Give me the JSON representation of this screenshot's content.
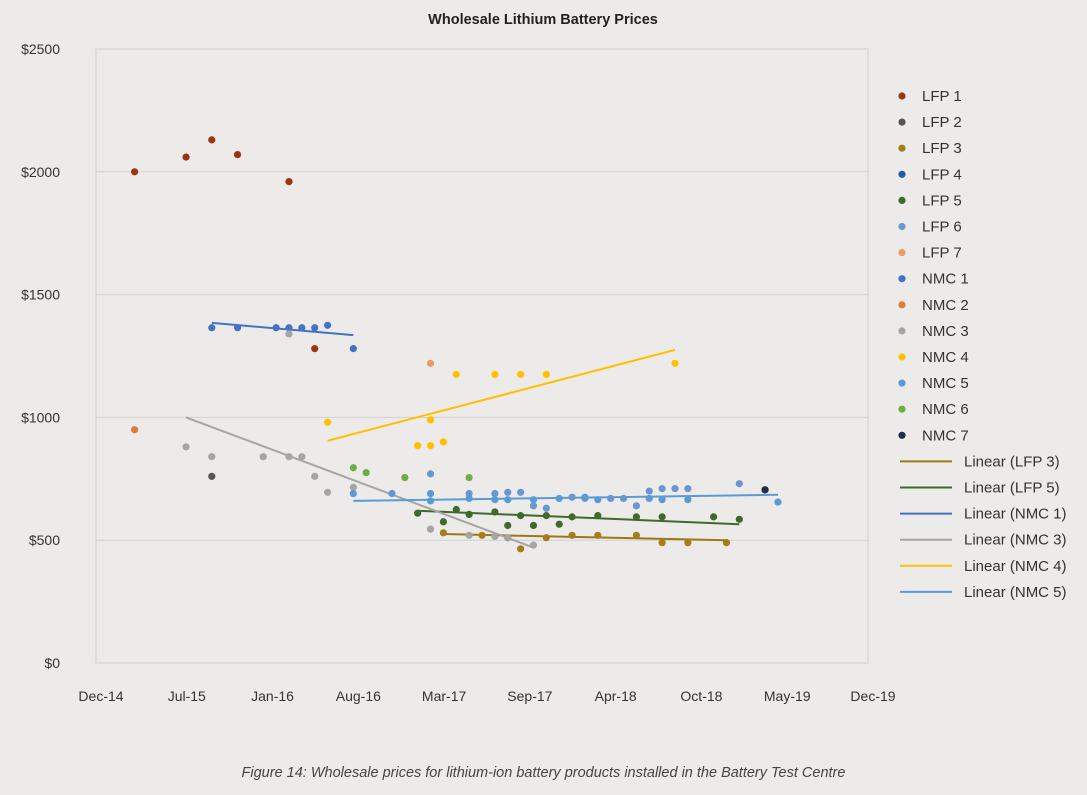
{
  "chart_data": {
    "type": "scatter",
    "title": "Wholesale Lithium Battery Prices",
    "xlabel": "",
    "ylabel": "",
    "x_ticks": [
      "Dec-14",
      "Jul-15",
      "Jan-16",
      "Aug-16",
      "Mar-17",
      "Sep-17",
      "Apr-18",
      "Oct-18",
      "May-19",
      "Dec-19"
    ],
    "y_ticks": [
      "$0",
      "$500",
      "$1000",
      "$1500",
      "$2000",
      "$2500"
    ],
    "xlim": [
      "2014-12",
      "2019-12"
    ],
    "ylim": [
      0,
      2500
    ],
    "grid": "horizontal",
    "legend_position": "right",
    "series": [
      {
        "name": "LFP 1",
        "color": "#9b3411",
        "points": [
          [
            "2015-03",
            2000
          ],
          [
            "2015-07",
            2060
          ],
          [
            "2015-09",
            2130
          ],
          [
            "2015-11",
            2070
          ],
          [
            "2016-03",
            1960
          ],
          [
            "2016-05",
            1280
          ]
        ]
      },
      {
        "name": "LFP 2",
        "color": "#555555",
        "points": [
          [
            "2015-09",
            760
          ]
        ]
      },
      {
        "name": "LFP 3",
        "color": "#a57e1a",
        "points": [
          [
            "2017-03",
            530
          ],
          [
            "2017-06",
            520
          ],
          [
            "2017-08",
            510
          ],
          [
            "2017-09",
            465
          ],
          [
            "2017-11",
            510
          ],
          [
            "2018-01",
            520
          ],
          [
            "2018-03",
            520
          ],
          [
            "2018-06",
            520
          ],
          [
            "2018-08",
            490
          ],
          [
            "2018-10",
            490
          ],
          [
            "2019-01",
            490
          ]
        ]
      },
      {
        "name": "LFP 4",
        "color": "#1f5fa8",
        "points": [
          [
            "2019-04",
            705
          ]
        ]
      },
      {
        "name": "LFP 5",
        "color": "#3f6a2b",
        "points": [
          [
            "2017-01",
            610
          ],
          [
            "2017-03",
            575
          ],
          [
            "2017-04",
            625
          ],
          [
            "2017-05",
            605
          ],
          [
            "2017-07",
            615
          ],
          [
            "2017-08",
            560
          ],
          [
            "2017-09",
            600
          ],
          [
            "2017-10",
            560
          ],
          [
            "2017-11",
            600
          ],
          [
            "2017-12",
            565
          ],
          [
            "2018-01",
            595
          ],
          [
            "2018-03",
            600
          ],
          [
            "2018-06",
            595
          ],
          [
            "2018-08",
            595
          ],
          [
            "2018-12",
            595
          ],
          [
            "2019-02",
            585
          ]
        ]
      },
      {
        "name": "LFP 6",
        "color": "#6b97cf",
        "points": [
          [
            "2017-02",
            770
          ],
          [
            "2017-05",
            690
          ],
          [
            "2017-07",
            690
          ],
          [
            "2017-08",
            695
          ],
          [
            "2017-09",
            695
          ],
          [
            "2017-10",
            640
          ],
          [
            "2017-11",
            630
          ],
          [
            "2018-01",
            675
          ],
          [
            "2018-02",
            670
          ],
          [
            "2018-04",
            670
          ],
          [
            "2018-05",
            670
          ],
          [
            "2018-06",
            640
          ],
          [
            "2018-07",
            700
          ],
          [
            "2018-08",
            710
          ],
          [
            "2018-09",
            710
          ],
          [
            "2018-10",
            710
          ],
          [
            "2019-02",
            730
          ]
        ]
      },
      {
        "name": "LFP 7",
        "color": "#ee9b66",
        "points": [
          [
            "2017-02",
            1220
          ]
        ]
      },
      {
        "name": "NMC 1",
        "color": "#4472c4",
        "points": [
          [
            "2015-09",
            1365
          ],
          [
            "2015-11",
            1365
          ],
          [
            "2016-02",
            1365
          ],
          [
            "2016-03",
            1365
          ],
          [
            "2016-04",
            1365
          ],
          [
            "2016-05",
            1365
          ],
          [
            "2016-06",
            1375
          ],
          [
            "2016-08",
            1280
          ]
        ]
      },
      {
        "name": "NMC 2",
        "color": "#e07b39",
        "points": [
          [
            "2015-03",
            950
          ]
        ]
      },
      {
        "name": "NMC 3",
        "color": "#a5a5a5",
        "points": [
          [
            "2015-07",
            880
          ],
          [
            "2015-09",
            840
          ],
          [
            "2016-01",
            840
          ],
          [
            "2016-03",
            840
          ],
          [
            "2016-03",
            1340
          ],
          [
            "2016-04",
            840
          ],
          [
            "2016-05",
            760
          ],
          [
            "2016-06",
            695
          ],
          [
            "2016-08",
            715
          ],
          [
            "2017-02",
            545
          ],
          [
            "2017-05",
            520
          ],
          [
            "2017-07",
            515
          ],
          [
            "2017-08",
            510
          ],
          [
            "2017-10",
            480
          ]
        ]
      },
      {
        "name": "NMC 4",
        "color": "#ffc000",
        "points": [
          [
            "2016-06",
            980
          ],
          [
            "2017-01",
            885
          ],
          [
            "2017-02",
            885
          ],
          [
            "2017-02",
            990
          ],
          [
            "2017-03",
            900
          ],
          [
            "2017-04",
            1175
          ],
          [
            "2017-07",
            1175
          ],
          [
            "2017-09",
            1175
          ],
          [
            "2017-11",
            1175
          ],
          [
            "2018-09",
            1220
          ]
        ]
      },
      {
        "name": "NMC 5",
        "color": "#5b9bd5",
        "points": [
          [
            "2016-08",
            690
          ],
          [
            "2016-11",
            690
          ],
          [
            "2017-02",
            690
          ],
          [
            "2017-02",
            660
          ],
          [
            "2017-05",
            670
          ],
          [
            "2017-07",
            665
          ],
          [
            "2017-08",
            665
          ],
          [
            "2017-10",
            665
          ],
          [
            "2017-12",
            670
          ],
          [
            "2018-02",
            675
          ],
          [
            "2018-03",
            665
          ],
          [
            "2018-07",
            670
          ],
          [
            "2018-08",
            665
          ],
          [
            "2018-10",
            665
          ],
          [
            "2019-05",
            655
          ]
        ]
      },
      {
        "name": "NMC 6",
        "color": "#70ad47",
        "points": [
          [
            "2016-08",
            795
          ],
          [
            "2016-09",
            775
          ],
          [
            "2016-12",
            755
          ],
          [
            "2017-05",
            755
          ]
        ]
      },
      {
        "name": "NMC 7",
        "color": "#1f2d4d",
        "points": [
          [
            "2019-04",
            705
          ]
        ]
      }
    ],
    "trendlines": [
      {
        "name": "Linear (LFP 3)",
        "color": "#9c7a12",
        "from": [
          "2017-03",
          525
        ],
        "to": [
          "2019-01",
          500
        ]
      },
      {
        "name": "Linear (LFP 5)",
        "color": "#3f6a2b",
        "from": [
          "2017-01",
          620
        ],
        "to": [
          "2019-02",
          565
        ]
      },
      {
        "name": "Linear (NMC 1)",
        "color": "#4472c4",
        "from": [
          "2015-09",
          1385
        ],
        "to": [
          "2016-08",
          1335
        ]
      },
      {
        "name": "Linear (NMC 3)",
        "color": "#a5a5a5",
        "from": [
          "2015-07",
          1000
        ],
        "to": [
          "2017-10",
          470
        ]
      },
      {
        "name": "Linear (NMC 4)",
        "color": "#ffc000",
        "from": [
          "2016-06",
          905
        ],
        "to": [
          "2018-09",
          1275
        ]
      },
      {
        "name": "Linear (NMC 5)",
        "color": "#5b9bd5",
        "from": [
          "2016-08",
          660
        ],
        "to": [
          "2019-05",
          685
        ]
      }
    ],
    "caption": "Figure 14: Wholesale prices for lithium-ion battery products installed in the Battery Test Centre"
  }
}
